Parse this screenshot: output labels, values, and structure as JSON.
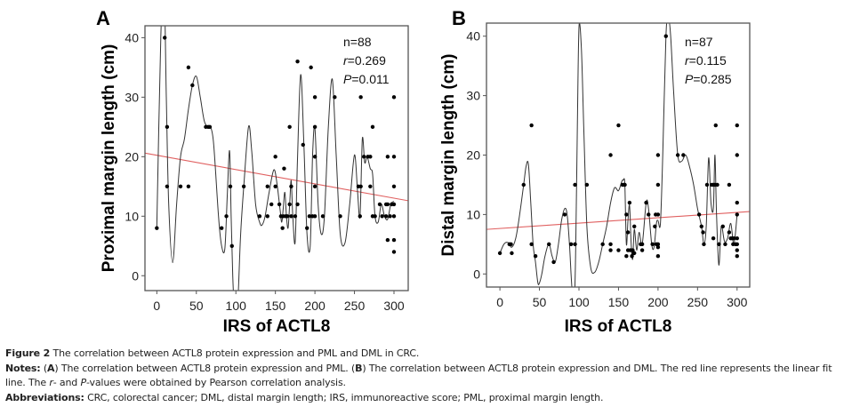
{
  "chart_data": [
    {
      "type": "scatter",
      "panel_label": "A",
      "title": "",
      "xlabel": "IRS of ACTL8",
      "ylabel": "Proximal margin length (cm)",
      "xlim": [
        -15,
        318
      ],
      "ylim": [
        -2.5,
        42
      ],
      "xticks": [
        0,
        50,
        100,
        150,
        200,
        250,
        300
      ],
      "yticks": [
        0,
        10,
        20,
        30,
        40
      ],
      "grid": false,
      "stats": [
        "n=88",
        "r=0.269",
        "P=0.011"
      ],
      "stat_parts": [
        {
          "pre": "n=88",
          "ital": "",
          "post": ""
        },
        {
          "pre": "",
          "ital": "r",
          "post": "=0.269"
        },
        {
          "pre": "",
          "ital": "P",
          "post": "=0.011"
        }
      ],
      "fit_line": {
        "color": "#e06060",
        "x": [
          -15,
          318
        ],
        "y": [
          20.6,
          12.6
        ]
      },
      "smooth_curve": {
        "color": "#333333",
        "x": [
          0,
          5,
          9,
          12,
          15,
          20,
          25,
          30,
          35,
          40,
          45,
          50,
          55,
          60,
          65,
          68,
          72,
          78,
          82,
          86,
          89,
          92,
          94,
          96,
          98,
          100,
          103,
          106,
          110,
          116,
          120,
          125,
          130,
          133,
          137,
          142,
          148,
          152,
          156,
          158,
          160,
          162,
          164,
          166,
          168,
          170,
          172,
          175,
          178,
          182,
          186,
          190,
          194,
          197,
          200,
          204,
          208,
          212,
          217,
          222,
          227,
          232,
          238,
          244,
          250,
          254,
          257,
          260,
          263,
          266,
          270,
          273,
          276,
          280,
          284,
          288,
          292,
          296,
          300
        ],
        "y": [
          8,
          40,
          50,
          30,
          12,
          2.2,
          12,
          20,
          23,
          28,
          32,
          33.5,
          30,
          26,
          25,
          25,
          22,
          10,
          5,
          4.5,
          13,
          21,
          10,
          0,
          -6,
          -10,
          -3,
          7,
          15,
          25,
          21,
          12,
          9,
          8.5,
          10,
          14,
          17.8,
          15.5,
          11,
          9,
          11.5,
          14,
          10,
          8,
          12,
          16,
          10,
          5.7,
          20,
          33.8,
          22,
          7,
          5,
          20,
          24.8,
          12,
          7,
          10,
          25,
          33,
          20,
          7,
          5.5,
          12,
          20.3,
          14,
          10,
          23,
          19,
          20,
          18,
          17,
          10,
          9,
          12,
          10,
          9.5,
          12,
          12.5
        ]
      },
      "points": [
        [
          0,
          8
        ],
        [
          10,
          40
        ],
        [
          13,
          25
        ],
        [
          13,
          15
        ],
        [
          30,
          15
        ],
        [
          40,
          35
        ],
        [
          40,
          15
        ],
        [
          45,
          32
        ],
        [
          62,
          25
        ],
        [
          65,
          25
        ],
        [
          67,
          25
        ],
        [
          82,
          8
        ],
        [
          88,
          10
        ],
        [
          93,
          15
        ],
        [
          95,
          5
        ],
        [
          110,
          15
        ],
        [
          130,
          10
        ],
        [
          140,
          10
        ],
        [
          140,
          15
        ],
        [
          145,
          12
        ],
        [
          150,
          20
        ],
        [
          150,
          15
        ],
        [
          155,
          12
        ],
        [
          157,
          10
        ],
        [
          159,
          8
        ],
        [
          160,
          10
        ],
        [
          161,
          18
        ],
        [
          163,
          10
        ],
        [
          165,
          10
        ],
        [
          168,
          12
        ],
        [
          168,
          25
        ],
        [
          170,
          15
        ],
        [
          170,
          10
        ],
        [
          175,
          10
        ],
        [
          178,
          36
        ],
        [
          178,
          12
        ],
        [
          185,
          22
        ],
        [
          190,
          8
        ],
        [
          193,
          10
        ],
        [
          195,
          35
        ],
        [
          197,
          10
        ],
        [
          200,
          10
        ],
        [
          200,
          30
        ],
        [
          200,
          25
        ],
        [
          200,
          20
        ],
        [
          200,
          15
        ],
        [
          210,
          10
        ],
        [
          225,
          30
        ],
        [
          232,
          10
        ],
        [
          255,
          15
        ],
        [
          257,
          10
        ],
        [
          258,
          30
        ],
        [
          258,
          15
        ],
        [
          262,
          20
        ],
        [
          267,
          20
        ],
        [
          270,
          20
        ],
        [
          270,
          15
        ],
        [
          273,
          25
        ],
        [
          273,
          10
        ],
        [
          276,
          10
        ],
        [
          282,
          12
        ],
        [
          285,
          10
        ],
        [
          290,
          10
        ],
        [
          290,
          12
        ],
        [
          292,
          12
        ],
        [
          292,
          20
        ],
        [
          292,
          6
        ],
        [
          295,
          10
        ],
        [
          297,
          12
        ],
        [
          300,
          30
        ],
        [
          300,
          20
        ],
        [
          300,
          15
        ],
        [
          300,
          12
        ],
        [
          300,
          10
        ],
        [
          300,
          6
        ],
        [
          300,
          4
        ]
      ]
    },
    {
      "type": "scatter",
      "panel_label": "B",
      "title": "",
      "xlabel": "IRS of ACTL8",
      "ylabel": "Distal margin length (cm)",
      "xlim": [
        -17,
        316
      ],
      "ylim": [
        -2.2,
        42.2
      ],
      "xticks": [
        0,
        50,
        100,
        150,
        200,
        250,
        300
      ],
      "yticks": [
        0,
        10,
        20,
        30,
        40
      ],
      "grid": false,
      "stats": [
        "n=87",
        "r=0.115",
        "P=0.285"
      ],
      "stat_parts": [
        {
          "pre": "n=87",
          "ital": "",
          "post": ""
        },
        {
          "pre": "",
          "ital": "r",
          "post": "=0.115"
        },
        {
          "pre": "",
          "ital": "P",
          "post": "=0.285"
        }
      ],
      "fit_line": {
        "color": "#e06060",
        "x": [
          -17,
          316
        ],
        "y": [
          7.5,
          10.5
        ]
      },
      "smooth_curve": {
        "color": "#333333",
        "x": [
          0,
          5,
          10,
          15,
          20,
          25,
          30,
          33,
          36,
          39,
          42,
          45,
          48,
          50,
          53,
          57,
          62,
          66,
          70,
          74,
          78,
          82,
          85,
          88,
          90,
          92,
          94,
          96,
          98,
          100,
          103,
          106,
          110,
          115,
          120,
          125,
          130,
          135,
          140,
          145,
          150,
          154,
          156,
          158,
          160,
          162,
          164,
          166,
          168,
          170,
          173,
          176,
          180,
          185,
          188,
          192,
          195,
          198,
          200,
          203,
          206,
          210,
          213,
          216,
          220,
          225,
          230,
          235,
          240,
          245,
          250,
          255,
          258,
          261,
          264,
          267,
          270,
          272,
          274,
          277,
          280,
          284,
          288,
          292,
          296,
          300
        ],
        "y": [
          3.5,
          5,
          5.3,
          4.5,
          6,
          10,
          15,
          18,
          18.5,
          12,
          5,
          2,
          -1.5,
          -1.5,
          0,
          3,
          5,
          3,
          2,
          5,
          9,
          11,
          10,
          5,
          0,
          -4,
          -5,
          5,
          25,
          41.5,
          38,
          25,
          8,
          1,
          0.3,
          2,
          5,
          8,
          12,
          14.5,
          14,
          15.5,
          15.8,
          15,
          5,
          9,
          11.5,
          5,
          2.5,
          7.5,
          4,
          7,
          5,
          12,
          11,
          5,
          4.5,
          8.5,
          9,
          8.5,
          20,
          40,
          43,
          40,
          30,
          20,
          19,
          20,
          18,
          15,
          11,
          8,
          5,
          8,
          19.5,
          12,
          11,
          20,
          10,
          1.5,
          8,
          5.5,
          6,
          8.5,
          5,
          10
        ]
      },
      "points": [
        [
          0,
          3.5
        ],
        [
          12,
          5
        ],
        [
          14,
          5
        ],
        [
          15,
          3.5
        ],
        [
          30,
          15
        ],
        [
          40,
          25
        ],
        [
          40,
          5
        ],
        [
          45,
          3
        ],
        [
          62,
          5
        ],
        [
          68,
          2
        ],
        [
          82,
          10
        ],
        [
          90,
          5
        ],
        [
          95,
          5
        ],
        [
          95,
          15
        ],
        [
          110,
          15
        ],
        [
          130,
          5
        ],
        [
          140,
          20
        ],
        [
          140,
          5
        ],
        [
          140,
          4
        ],
        [
          150,
          25
        ],
        [
          150,
          4
        ],
        [
          155,
          15
        ],
        [
          157,
          15
        ],
        [
          158,
          15
        ],
        [
          160,
          10
        ],
        [
          160,
          3
        ],
        [
          162,
          7
        ],
        [
          162,
          4
        ],
        [
          164,
          12
        ],
        [
          165,
          4
        ],
        [
          167,
          3
        ],
        [
          168,
          4
        ],
        [
          169,
          3.5
        ],
        [
          170,
          8
        ],
        [
          170,
          3.5
        ],
        [
          178,
          5
        ],
        [
          180,
          5
        ],
        [
          180,
          4
        ],
        [
          185,
          12
        ],
        [
          188,
          10
        ],
        [
          193,
          5
        ],
        [
          196,
          8
        ],
        [
          197,
          10
        ],
        [
          198,
          5
        ],
        [
          200,
          20
        ],
        [
          200,
          15
        ],
        [
          200,
          10
        ],
        [
          200,
          5
        ],
        [
          200,
          4.5
        ],
        [
          200,
          3
        ],
        [
          210,
          40
        ],
        [
          225,
          20
        ],
        [
          232,
          20
        ],
        [
          252,
          10
        ],
        [
          255,
          8
        ],
        [
          257,
          7
        ],
        [
          258,
          5
        ],
        [
          262,
          15
        ],
        [
          268,
          15
        ],
        [
          270,
          15
        ],
        [
          270,
          6
        ],
        [
          272,
          15
        ],
        [
          273,
          25
        ],
        [
          275,
          15
        ],
        [
          277,
          5
        ],
        [
          282,
          8
        ],
        [
          285,
          5
        ],
        [
          290,
          7
        ],
        [
          290,
          15
        ],
        [
          292,
          6
        ],
        [
          294,
          6
        ],
        [
          295,
          5
        ],
        [
          296,
          6
        ],
        [
          298,
          5
        ],
        [
          300,
          25
        ],
        [
          300,
          20
        ],
        [
          300,
          12
        ],
        [
          300,
          10
        ],
        [
          300,
          6
        ],
        [
          300,
          5
        ],
        [
          300,
          4
        ],
        [
          300,
          3
        ]
      ]
    }
  ],
  "caption": {
    "figure_label": "Figure 2",
    "figure_text": " The correlation between ACTL8 protein expression and PML and DML in CRC.",
    "notes_label": "Notes:",
    "notes_a_label": "A",
    "notes_a_text": " The correlation between ACTL8 protein expression and PML. (",
    "notes_b_label": "B",
    "notes_b_text": ") The correlation between ACTL8 protein expression and DML. The red line represents the linear fit line. The ",
    "notes_r": "r",
    "notes_mid": "- and ",
    "notes_p": "P",
    "notes_end": "-values were obtained by Pearson correlation analysis.",
    "abbrev_label": "Abbreviations:",
    "abbrev_text": " CRC, colorectal cancer; DML, distal margin length; IRS, immunoreactive score; PML, proximal margin length."
  }
}
